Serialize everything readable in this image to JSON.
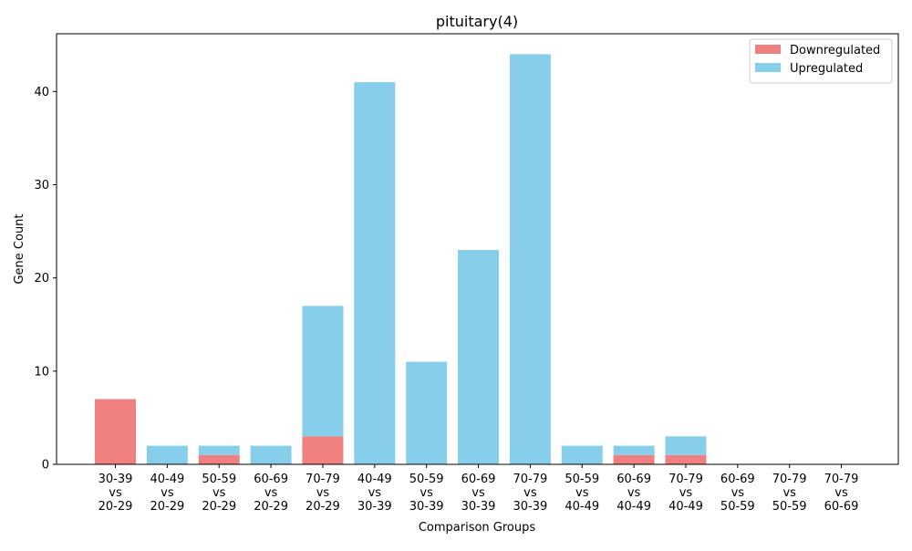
{
  "chart_data": {
    "type": "bar",
    "stacked": true,
    "title": "pituitary(4)",
    "xlabel": "Comparison Groups",
    "ylabel": "Gene Count",
    "ylim": [
      0,
      46.2
    ],
    "yticks": [
      0,
      10,
      20,
      30,
      40
    ],
    "grid": false,
    "legend_position": "top-right",
    "categories": [
      [
        "30-39",
        "vs",
        "20-29"
      ],
      [
        "40-49",
        "vs",
        "20-29"
      ],
      [
        "50-59",
        "vs",
        "20-29"
      ],
      [
        "60-69",
        "vs",
        "20-29"
      ],
      [
        "70-79",
        "vs",
        "20-29"
      ],
      [
        "40-49",
        "vs",
        "30-39"
      ],
      [
        "50-59",
        "vs",
        "30-39"
      ],
      [
        "60-69",
        "vs",
        "30-39"
      ],
      [
        "70-79",
        "vs",
        "30-39"
      ],
      [
        "50-59",
        "vs",
        "40-49"
      ],
      [
        "60-69",
        "vs",
        "40-49"
      ],
      [
        "70-79",
        "vs",
        "40-49"
      ],
      [
        "60-69",
        "vs",
        "50-59"
      ],
      [
        "70-79",
        "vs",
        "50-59"
      ],
      [
        "70-79",
        "vs",
        "60-69"
      ]
    ],
    "series": [
      {
        "name": "Downregulated",
        "color": "#f08080",
        "values": [
          7,
          0,
          1,
          0,
          3,
          0,
          0,
          0,
          0,
          0,
          1,
          1,
          0,
          0,
          0
        ]
      },
      {
        "name": "Upregulated",
        "color": "#87ceeb",
        "values": [
          0,
          2,
          1,
          2,
          14,
          41,
          11,
          23,
          44,
          2,
          1,
          2,
          0,
          0,
          0
        ]
      }
    ]
  }
}
